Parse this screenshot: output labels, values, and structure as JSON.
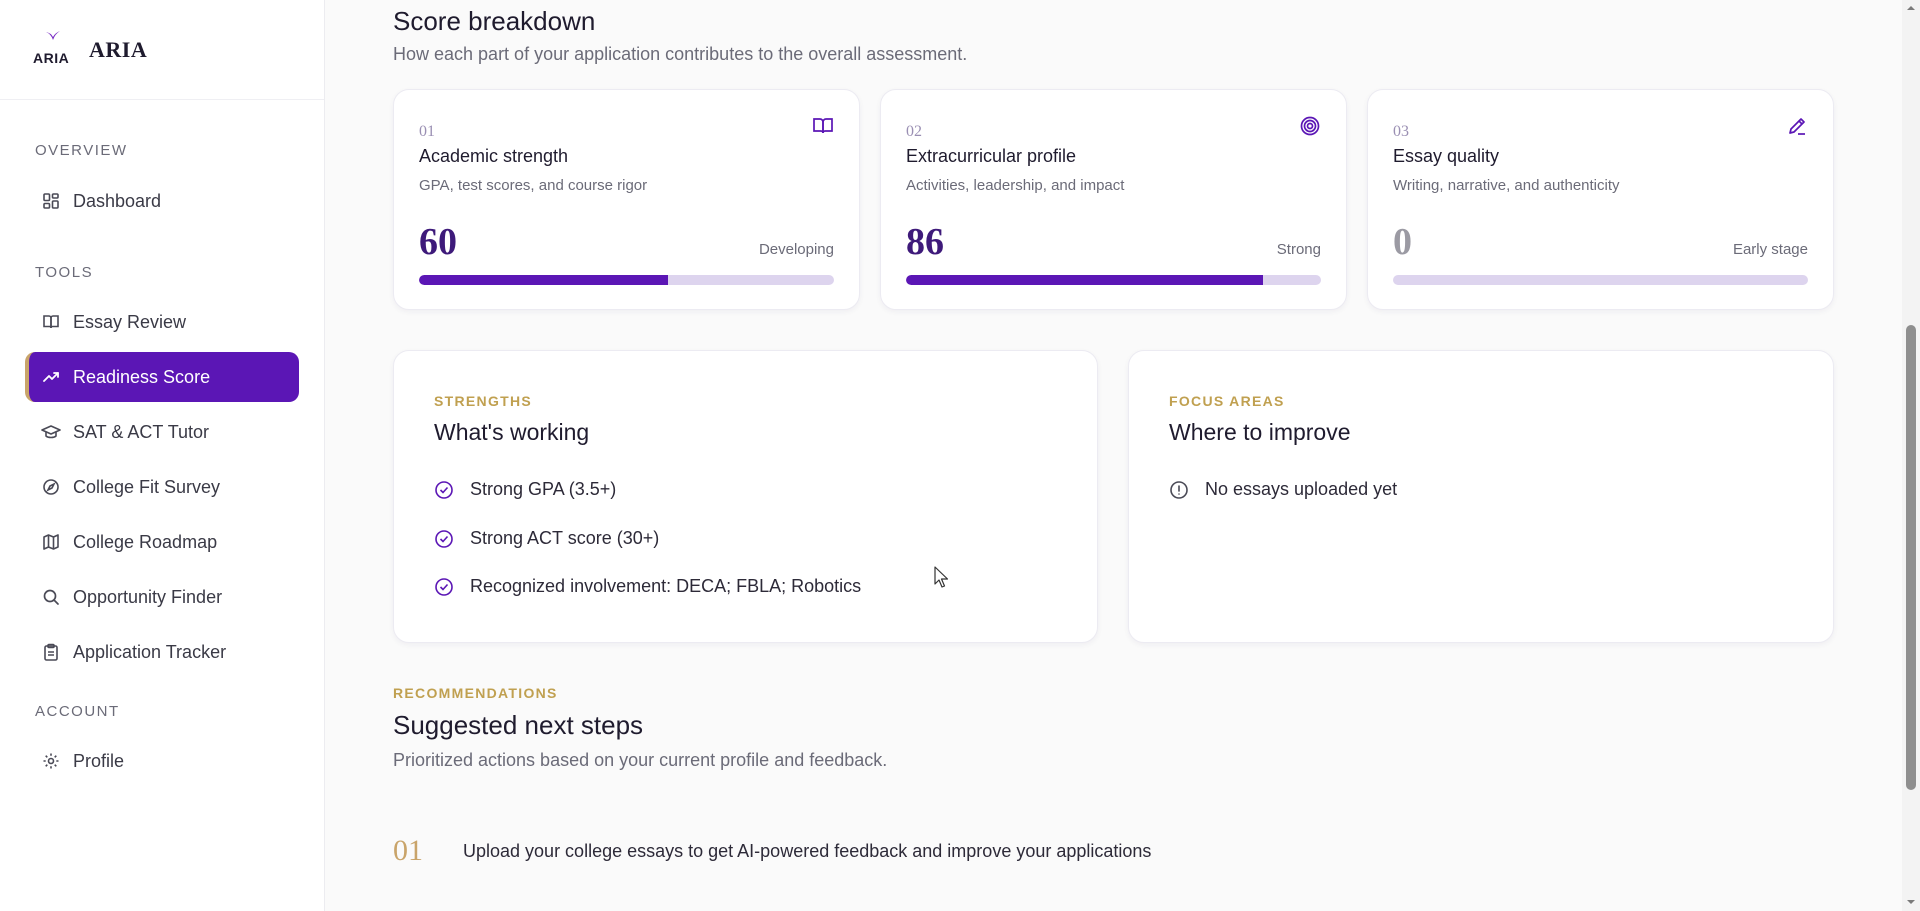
{
  "brand": {
    "mini": "ARIA",
    "name": "ARIA",
    "accent": "#7a2fc4"
  },
  "sidebar": {
    "sections": {
      "overview": "OVERVIEW",
      "tools": "TOOLS",
      "account": "ACCOUNT"
    },
    "items": {
      "dashboard": {
        "label": "Dashboard",
        "icon": "grid-icon"
      },
      "essay_review": {
        "label": "Essay Review",
        "icon": "book-icon"
      },
      "readiness_score": {
        "label": "Readiness Score",
        "icon": "trending-up-icon",
        "active": true
      },
      "sat_tutor": {
        "label": "SAT & ACT Tutor",
        "icon": "graduation-cap-icon"
      },
      "college_fit": {
        "label": "College Fit Survey",
        "icon": "compass-icon"
      },
      "roadmap": {
        "label": "College Roadmap",
        "icon": "map-icon"
      },
      "opportunity": {
        "label": "Opportunity Finder",
        "icon": "search-icon"
      },
      "tracker": {
        "label": "Application Tracker",
        "icon": "clipboard-icon"
      },
      "profile": {
        "label": "Profile",
        "icon": "gear-icon"
      }
    }
  },
  "breakdown": {
    "title": "Score breakdown",
    "subtitle": "How each part of your application contributes to the overall assessment.",
    "cards": [
      {
        "num": "01",
        "title": "Academic strength",
        "desc": "GPA, test scores, and course rigor",
        "value": "60",
        "level": "Developing",
        "progress": 0.6,
        "icon": "book-open-icon"
      },
      {
        "num": "02",
        "title": "Extracurricular profile",
        "desc": "Activities, leadership, and impact",
        "value": "86",
        "level": "Strong",
        "progress": 0.86,
        "icon": "target-icon"
      },
      {
        "num": "03",
        "title": "Essay quality",
        "desc": "Writing, narrative, and authenticity",
        "value": "0",
        "level": "Early stage",
        "progress": 0,
        "icon": "pencil-icon"
      }
    ]
  },
  "strengths": {
    "eyebrow": "STRENGTHS",
    "title": "What's working",
    "items": [
      "Strong GPA (3.5+)",
      "Strong ACT score (30+)",
      "Recognized involvement: DECA; FBLA; Robotics"
    ]
  },
  "focus": {
    "eyebrow": "FOCUS AREAS",
    "title": "Where to improve",
    "items": [
      "No essays uploaded yet"
    ]
  },
  "recommendations": {
    "eyebrow": "RECOMMENDATIONS",
    "title": "Suggested next steps",
    "subtitle": "Prioritized actions based on your current profile and feedback.",
    "steps": [
      {
        "num": "01",
        "text": "Upload your college essays to get AI-powered feedback and improve your applications"
      }
    ]
  },
  "colors": {
    "primary": "#5b16b5",
    "gold": "#c0a050",
    "track": "#ddd4ee"
  }
}
